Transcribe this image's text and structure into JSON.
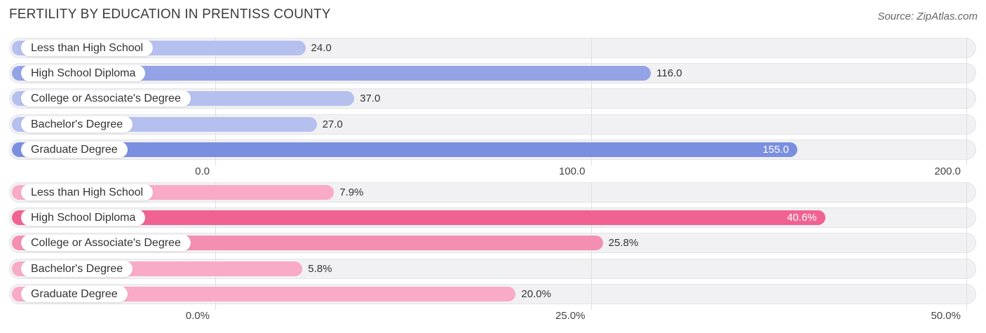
{
  "title": "FERTILITY BY EDUCATION IN PRENTISS COUNTY",
  "source": "Source: ZipAtlas.com",
  "chart_data": [
    {
      "type": "bar",
      "orientation": "horizontal",
      "categories": [
        "Less than High School",
        "High School Diploma",
        "College or Associate's Degree",
        "Bachelor's Degree",
        "Graduate Degree"
      ],
      "values": [
        24.0,
        116.0,
        37.0,
        27.0,
        155.0
      ],
      "value_labels": [
        "24.0",
        "116.0",
        "37.0",
        "27.0",
        "155.0"
      ],
      "xlim": [
        0,
        200
      ],
      "ticks": [
        0,
        100,
        200
      ],
      "tick_labels": [
        "0.0",
        "100.0",
        "200.0"
      ],
      "colors": {
        "max": "#7b8fe0",
        "mid": "#93a3e6",
        "light": "#b6c0ef"
      }
    },
    {
      "type": "bar",
      "orientation": "horizontal",
      "categories": [
        "Less than High School",
        "High School Diploma",
        "College or Associate's Degree",
        "Bachelor's Degree",
        "Graduate Degree"
      ],
      "values": [
        7.9,
        40.6,
        25.8,
        5.8,
        20.0
      ],
      "value_labels": [
        "7.9%",
        "40.6%",
        "25.8%",
        "5.8%",
        "20.0%"
      ],
      "xlim": [
        0,
        50
      ],
      "ticks": [
        0,
        25,
        50
      ],
      "tick_labels": [
        "0.0%",
        "25.0%",
        "50.0%"
      ],
      "colors": {
        "max": "#f06292",
        "mid": "#f48fb1",
        "light": "#f8aac6"
      }
    }
  ]
}
